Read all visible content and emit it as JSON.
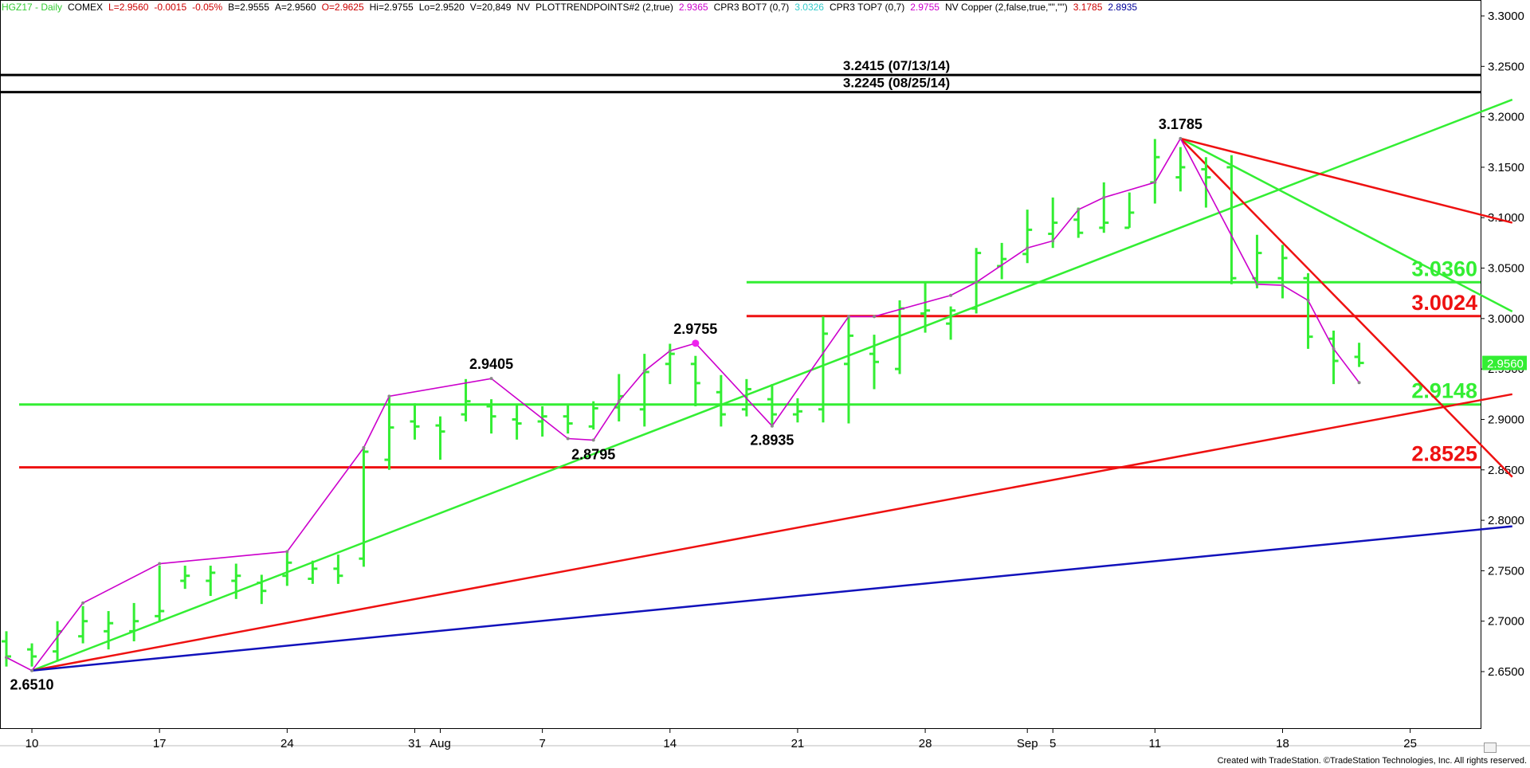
{
  "header": {
    "items": [
      {
        "text": "HGZ17 - Daily",
        "color": "#33cc33"
      },
      {
        "text": "COMEX",
        "color": "#000000"
      },
      {
        "text": "L=2.9560",
        "color": "#cc0000"
      },
      {
        "text": "-0.0015",
        "color": "#cc0000"
      },
      {
        "text": "-0.05%",
        "color": "#cc0000"
      },
      {
        "text": "B=2.9555",
        "color": "#000000"
      },
      {
        "text": "A=2.9560",
        "color": "#000000"
      },
      {
        "text": "O=2.9625",
        "color": "#cc0000"
      },
      {
        "text": "Hi=2.9755",
        "color": "#000000"
      },
      {
        "text": "Lo=2.9520",
        "color": "#000000"
      },
      {
        "text": "V=20,849",
        "color": "#000000"
      },
      {
        "text": "NV",
        "color": "#000000"
      },
      {
        "text": "PLOTTRENDPOINTS#2 (2,true)",
        "color": "#000000"
      },
      {
        "text": "2.9365",
        "color": "#cc00cc"
      },
      {
        "text": "CPR3 BOT7 (0,7)",
        "color": "#000000"
      },
      {
        "text": "3.0326",
        "color": "#33cccc"
      },
      {
        "text": "CPR3 TOP7 (0,7)",
        "color": "#000000"
      },
      {
        "text": "2.9755",
        "color": "#cc00cc"
      },
      {
        "text": "NV Copper (2,false,true,\"\",\"\")",
        "color": "#000000"
      },
      {
        "text": "3.1785",
        "color": "#cc0000"
      },
      {
        "text": "2.8935",
        "color": "#000099"
      }
    ]
  },
  "footer": {
    "text": "Created with TradeStation. ©TradeStation Technologies, Inc. All rights reserved."
  },
  "chart_data": {
    "type": "ohlc",
    "title": "",
    "ylim": [
      2.6,
      3.31
    ],
    "y_ticks": [
      "3.3000",
      "3.2500",
      "3.2000",
      "3.1500",
      "3.1000",
      "3.0500",
      "3.0000",
      "2.9500",
      "2.9000",
      "2.8500",
      "2.8000",
      "2.7500",
      "2.7000",
      "2.6500"
    ],
    "x_tick_labels": [
      {
        "label": "10",
        "bar": 1
      },
      {
        "label": "17",
        "bar": 6
      },
      {
        "label": "24",
        "bar": 11
      },
      {
        "label": "31",
        "bar": 16
      },
      {
        "label": "Aug",
        "bar": 17
      },
      {
        "label": "7",
        "bar": 21
      },
      {
        "label": "14",
        "bar": 26
      },
      {
        "label": "21",
        "bar": 31
      },
      {
        "label": "28",
        "bar": 36
      },
      {
        "label": "Sep",
        "bar": 40
      },
      {
        "label": "5",
        "bar": 41
      },
      {
        "label": "11",
        "bar": 45
      },
      {
        "label": "18",
        "bar": 50
      },
      {
        "label": "25",
        "bar": 55
      }
    ],
    "bars": [
      {
        "o": 2.68,
        "h": 2.69,
        "l": 2.655,
        "c": 2.665
      },
      {
        "o": 2.672,
        "h": 2.678,
        "l": 2.655,
        "c": 2.665
      },
      {
        "o": 2.67,
        "h": 2.7,
        "l": 2.66,
        "c": 2.69
      },
      {
        "o": 2.685,
        "h": 2.715,
        "l": 2.678,
        "c": 2.7
      },
      {
        "o": 2.69,
        "h": 2.71,
        "l": 2.672,
        "c": 2.698
      },
      {
        "o": 2.69,
        "h": 2.718,
        "l": 2.68,
        "c": 2.7
      },
      {
        "o": 2.705,
        "h": 2.755,
        "l": 2.7,
        "c": 2.71
      },
      {
        "o": 2.74,
        "h": 2.755,
        "l": 2.732,
        "c": 2.745
      },
      {
        "o": 2.74,
        "h": 2.755,
        "l": 2.725,
        "c": 2.748
      },
      {
        "o": 2.74,
        "h": 2.757,
        "l": 2.722,
        "c": 2.745
      },
      {
        "o": 2.738,
        "h": 2.746,
        "l": 2.717,
        "c": 2.73
      },
      {
        "o": 2.745,
        "h": 2.769,
        "l": 2.735,
        "c": 2.758
      },
      {
        "o": 2.742,
        "h": 2.76,
        "l": 2.737,
        "c": 2.752
      },
      {
        "o": 2.752,
        "h": 2.766,
        "l": 2.737,
        "c": 2.745
      },
      {
        "o": 2.762,
        "h": 2.872,
        "l": 2.754,
        "c": 2.868
      },
      {
        "o": 2.86,
        "h": 2.923,
        "l": 2.85,
        "c": 2.892
      },
      {
        "o": 2.898,
        "h": 2.916,
        "l": 2.88,
        "c": 2.893
      },
      {
        "o": 2.894,
        "h": 2.903,
        "l": 2.86,
        "c": 2.888
      },
      {
        "o": 2.905,
        "h": 2.94,
        "l": 2.898,
        "c": 2.918
      },
      {
        "o": 2.913,
        "h": 2.92,
        "l": 2.886,
        "c": 2.903
      },
      {
        "o": 2.9,
        "h": 2.914,
        "l": 2.88,
        "c": 2.896
      },
      {
        "o": 2.898,
        "h": 2.913,
        "l": 2.883,
        "c": 2.903
      },
      {
        "o": 2.903,
        "h": 2.915,
        "l": 2.886,
        "c": 2.896
      },
      {
        "o": 2.893,
        "h": 2.918,
        "l": 2.89,
        "c": 2.911
      },
      {
        "o": 2.912,
        "h": 2.945,
        "l": 2.898,
        "c": 2.923
      },
      {
        "o": 2.91,
        "h": 2.965,
        "l": 2.893,
        "c": 2.947
      },
      {
        "o": 2.955,
        "h": 2.975,
        "l": 2.935,
        "c": 2.965
      },
      {
        "o": 2.955,
        "h": 2.963,
        "l": 2.913,
        "c": 2.936
      },
      {
        "o": 2.927,
        "h": 2.944,
        "l": 2.893,
        "c": 2.905
      },
      {
        "o": 2.91,
        "h": 2.94,
        "l": 2.903,
        "c": 2.93
      },
      {
        "o": 2.92,
        "h": 2.935,
        "l": 2.895,
        "c": 2.905
      },
      {
        "o": 2.905,
        "h": 2.921,
        "l": 2.897,
        "c": 2.908
      },
      {
        "o": 2.91,
        "h": 3.002,
        "l": 2.897,
        "c": 2.985
      },
      {
        "o": 2.955,
        "h": 3.002,
        "l": 2.896,
        "c": 2.983
      },
      {
        "o": 2.965,
        "h": 2.984,
        "l": 2.93,
        "c": 2.957
      },
      {
        "o": 2.95,
        "h": 3.018,
        "l": 2.945,
        "c": 3.01
      },
      {
        "o": 3.005,
        "h": 3.036,
        "l": 2.986,
        "c": 3.008
      },
      {
        "o": 2.995,
        "h": 3.012,
        "l": 2.979,
        "c": 3.008
      },
      {
        "o": 3.01,
        "h": 3.07,
        "l": 3.005,
        "c": 3.065
      },
      {
        "o": 3.052,
        "h": 3.075,
        "l": 3.039,
        "c": 3.059
      },
      {
        "o": 3.064,
        "h": 3.108,
        "l": 3.055,
        "c": 3.088
      },
      {
        "o": 3.084,
        "h": 3.12,
        "l": 3.07,
        "c": 3.095
      },
      {
        "o": 3.098,
        "h": 3.11,
        "l": 3.08,
        "c": 3.085
      },
      {
        "o": 3.09,
        "h": 3.135,
        "l": 3.085,
        "c": 3.095
      },
      {
        "o": 3.09,
        "h": 3.125,
        "l": 3.09,
        "c": 3.105
      },
      {
        "o": 3.135,
        "h": 3.178,
        "l": 3.114,
        "c": 3.16
      },
      {
        "o": 3.14,
        "h": 3.17,
        "l": 3.126,
        "c": 3.15
      },
      {
        "o": 3.148,
        "h": 3.16,
        "l": 3.11,
        "c": 3.14
      },
      {
        "o": 3.15,
        "h": 3.162,
        "l": 3.034,
        "c": 3.04
      },
      {
        "o": 3.04,
        "h": 3.083,
        "l": 3.03,
        "c": 3.065
      },
      {
        "o": 3.04,
        "h": 3.073,
        "l": 3.02,
        "c": 3.06
      },
      {
        "o": 3.04,
        "h": 3.045,
        "l": 2.97,
        "c": 2.982
      },
      {
        "o": 2.98,
        "h": 2.988,
        "l": 2.935,
        "c": 2.958
      },
      {
        "o": 2.962,
        "h": 2.976,
        "l": 2.952,
        "c": 2.956
      }
    ],
    "swing_points": [
      {
        "bar": 0,
        "price": 2.664
      },
      {
        "bar": 1,
        "price": 2.651
      },
      {
        "bar": 3,
        "price": 2.718
      },
      {
        "bar": 6,
        "price": 2.757
      },
      {
        "bar": 11,
        "price": 2.769
      },
      {
        "bar": 14,
        "price": 2.872
      },
      {
        "bar": 15,
        "price": 2.923
      },
      {
        "bar": 19,
        "price": 2.9405
      },
      {
        "bar": 22,
        "price": 2.881
      },
      {
        "bar": 23,
        "price": 2.8795
      },
      {
        "bar": 24,
        "price": 2.918
      },
      {
        "bar": 25,
        "price": 2.948
      },
      {
        "bar": 26,
        "price": 2.968
      },
      {
        "bar": 27,
        "price": 2.9755
      },
      {
        "bar": 30,
        "price": 2.8935
      },
      {
        "bar": 33,
        "price": 3.002
      },
      {
        "bar": 34,
        "price": 3.002
      },
      {
        "bar": 37,
        "price": 3.023
      },
      {
        "bar": 38,
        "price": 3.036
      },
      {
        "bar": 40,
        "price": 3.07
      },
      {
        "bar": 41,
        "price": 3.077
      },
      {
        "bar": 42,
        "price": 3.108
      },
      {
        "bar": 43,
        "price": 3.12
      },
      {
        "bar": 45,
        "price": 3.135
      },
      {
        "bar": 46,
        "price": 3.1785
      },
      {
        "bar": 49,
        "price": 3.034
      },
      {
        "bar": 50,
        "price": 3.033
      },
      {
        "bar": 51,
        "price": 3.018
      },
      {
        "bar": 52,
        "price": 2.97
      },
      {
        "bar": 53,
        "price": 2.9365
      }
    ],
    "horizontal_levels": [
      {
        "price": 3.2415,
        "color": "#000000",
        "label": "3.2415 (07/13/14)",
        "from_bar": -1,
        "label_pos": "top-center"
      },
      {
        "price": 3.2245,
        "color": "#000000",
        "label": "3.2245 (08/25/14)",
        "from_bar": -1,
        "label_pos": "top-center"
      },
      {
        "price": 3.036,
        "color": "#33ee33",
        "label": "3.0360",
        "from_bar": 29,
        "label_pos": "right"
      },
      {
        "price": 3.0024,
        "color": "#ee1111",
        "label": "3.0024",
        "from_bar": 29,
        "label_pos": "right"
      },
      {
        "price": 2.9148,
        "color": "#33ee33",
        "label": "2.9148",
        "from_bar": 0.5,
        "label_pos": "right"
      },
      {
        "price": 2.8525,
        "color": "#ee1111",
        "label": "2.8525",
        "from_bar": 0.5,
        "label_pos": "right"
      }
    ],
    "trend_lines": [
      {
        "color": "#33ee33",
        "from": {
          "bar": 1,
          "price": 2.651
        },
        "to": {
          "bar": 59,
          "price": 3.217
        }
      },
      {
        "color": "#ee1111",
        "from": {
          "bar": 1,
          "price": 2.651
        },
        "to": {
          "bar": 59,
          "price": 2.925
        }
      },
      {
        "color": "#1111bb",
        "from": {
          "bar": 1,
          "price": 2.651
        },
        "to": {
          "bar": 59,
          "price": 2.794
        }
      },
      {
        "color": "#33ee33",
        "from": {
          "bar": 46,
          "price": 3.1785
        },
        "to": {
          "bar": 59,
          "price": 3.007
        }
      },
      {
        "color": "#ee1111",
        "from": {
          "bar": 46,
          "price": 3.1785
        },
        "to": {
          "bar": 59,
          "price": 3.095
        }
      },
      {
        "color": "#ee1111",
        "from": {
          "bar": 46,
          "price": 3.1785
        },
        "to": {
          "bar": 59,
          "price": 2.843
        }
      }
    ],
    "price_labels": [
      {
        "text": "2.6510",
        "bar": 1,
        "price": 2.651,
        "pos": "below"
      },
      {
        "text": "2.9405",
        "bar": 19,
        "price": 2.9405,
        "pos": "above"
      },
      {
        "text": "2.8795",
        "bar": 23,
        "price": 2.8795,
        "pos": "below"
      },
      {
        "text": "2.9755",
        "bar": 27,
        "price": 2.9755,
        "pos": "above"
      },
      {
        "text": "2.8935",
        "bar": 30,
        "price": 2.8935,
        "pos": "below"
      },
      {
        "text": "3.1785",
        "bar": 46,
        "price": 3.1785,
        "pos": "above"
      }
    ],
    "last_price": {
      "text": "2.9560",
      "price": 2.956,
      "bg": "#33ee33"
    },
    "colors": {
      "bars": "#33ee33",
      "swing_line": "#cc00cc",
      "levels_green": "#33ee33",
      "levels_red": "#ee1111",
      "trend_blue": "#1111bb"
    }
  }
}
